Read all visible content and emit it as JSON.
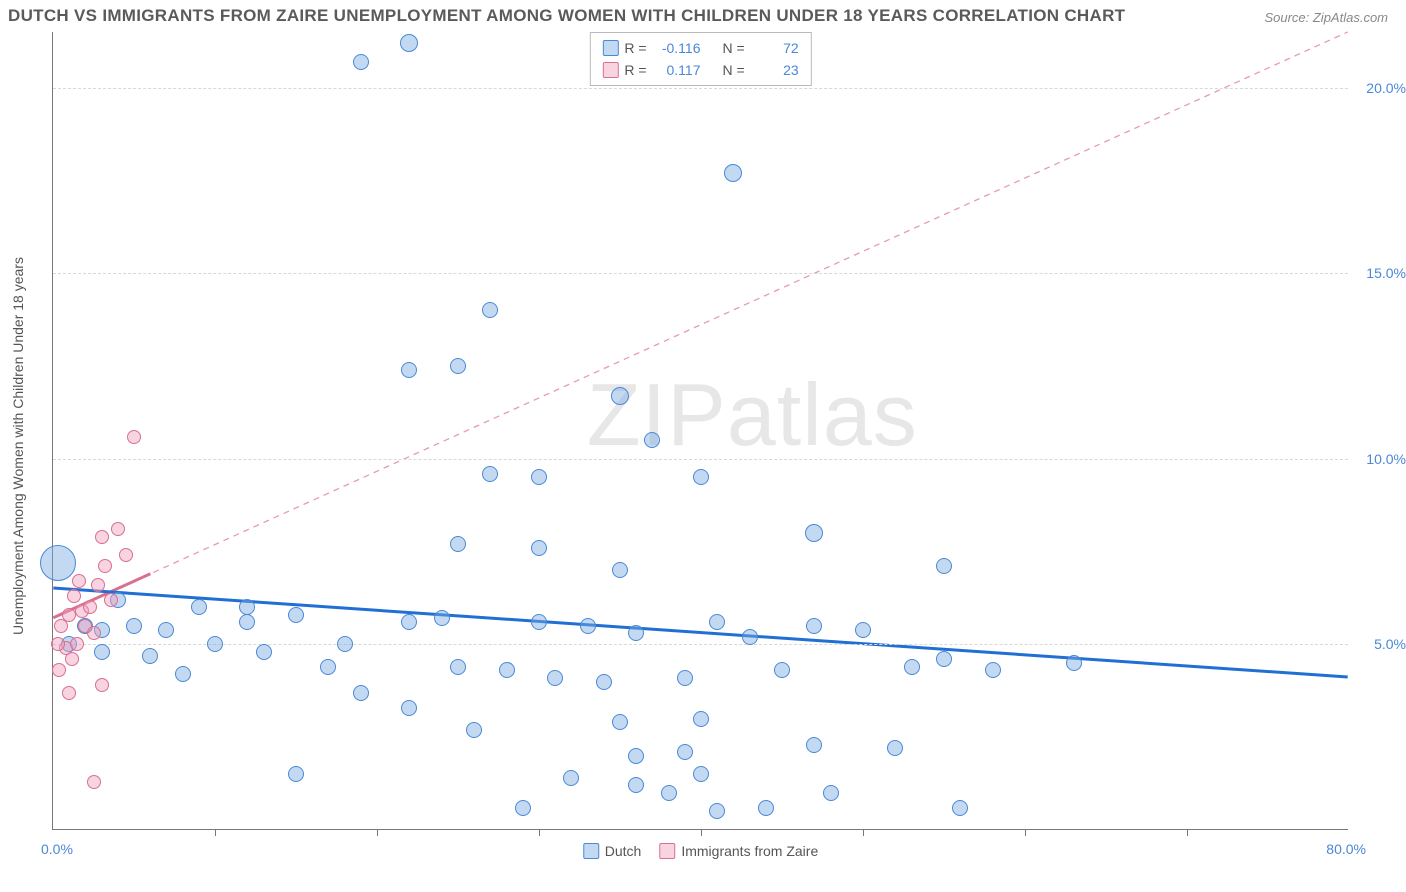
{
  "title": "DUTCH VS IMMIGRANTS FROM ZAIRE UNEMPLOYMENT AMONG WOMEN WITH CHILDREN UNDER 18 YEARS CORRELATION CHART",
  "source": "Source: ZipAtlas.com",
  "ylabel": "Unemployment Among Women with Children Under 18 years",
  "watermark_a": "ZIP",
  "watermark_b": "atlas",
  "chart": {
    "type": "scatter",
    "xlim": [
      0,
      80
    ],
    "ylim": [
      0,
      21.5
    ],
    "x_ticks": [
      10,
      20,
      30,
      40,
      50,
      60,
      70
    ],
    "y_gridlines": [
      5,
      10,
      15,
      20
    ],
    "y_tick_labels": [
      "5.0%",
      "10.0%",
      "15.0%",
      "20.0%"
    ],
    "xmin_label": "0.0%",
    "xmax_label": "80.0%",
    "background_color": "#ffffff",
    "grid_color": "#d8d8d8",
    "axis_color": "#777777",
    "label_color": "#4a88d8",
    "series": [
      {
        "key": "dutch",
        "label": "Dutch",
        "marker_fill": "rgba(120,170,225,0.45)",
        "marker_stroke": "#4a88d8",
        "marker_radius": 8,
        "trend": {
          "y_at_x0": 6.5,
          "y_at_xmax": 4.1,
          "color": "#1f6fd4",
          "width": 3,
          "dash": "none"
        },
        "stats": {
          "R": "-0.116",
          "N": "72"
        },
        "points": [
          [
            0.3,
            7.2,
            18
          ],
          [
            22,
            21.2,
            9
          ],
          [
            19,
            20.7,
            8
          ],
          [
            42,
            17.7,
            9
          ],
          [
            27,
            14.0,
            8
          ],
          [
            22,
            12.4,
            8
          ],
          [
            25,
            12.5,
            8
          ],
          [
            35,
            11.7,
            9
          ],
          [
            27,
            9.6,
            8
          ],
          [
            30,
            9.5,
            8
          ],
          [
            37,
            10.5,
            8
          ],
          [
            25,
            7.7,
            8
          ],
          [
            30,
            7.6,
            8
          ],
          [
            35,
            7.0,
            8
          ],
          [
            55,
            7.1,
            8
          ],
          [
            40,
            9.5,
            8
          ],
          [
            47,
            8.0,
            9
          ],
          [
            9,
            6.0,
            8
          ],
          [
            12,
            6.0,
            8
          ],
          [
            15,
            5.8,
            8
          ],
          [
            18,
            5.0,
            8
          ],
          [
            10,
            5.0,
            8
          ],
          [
            7,
            5.4,
            8
          ],
          [
            5,
            5.5,
            8
          ],
          [
            3,
            5.4,
            8
          ],
          [
            4,
            6.2,
            8
          ],
          [
            6,
            4.7,
            8
          ],
          [
            8,
            4.2,
            8
          ],
          [
            13,
            4.8,
            8
          ],
          [
            17,
            4.4,
            8
          ],
          [
            19,
            3.7,
            8
          ],
          [
            22,
            3.3,
            8
          ],
          [
            25,
            4.4,
            8
          ],
          [
            28,
            4.3,
            8
          ],
          [
            31,
            4.1,
            8
          ],
          [
            34,
            4.0,
            8
          ],
          [
            30,
            5.6,
            8
          ],
          [
            33,
            5.5,
            8
          ],
          [
            36,
            5.3,
            8
          ],
          [
            26,
            2.7,
            8
          ],
          [
            29,
            0.6,
            8
          ],
          [
            32,
            1.4,
            8
          ],
          [
            35,
            2.9,
            8
          ],
          [
            38,
            1.0,
            8
          ],
          [
            40,
            3.0,
            8
          ],
          [
            41,
            0.5,
            8
          ],
          [
            43,
            5.2,
            8
          ],
          [
            45,
            4.3,
            8
          ],
          [
            47,
            2.3,
            8
          ],
          [
            50,
            5.4,
            8
          ],
          [
            53,
            4.4,
            8
          ],
          [
            55,
            4.6,
            8
          ],
          [
            58,
            4.3,
            8
          ],
          [
            44,
            0.6,
            8
          ],
          [
            36,
            2.0,
            8
          ],
          [
            48,
            1.0,
            8
          ],
          [
            52,
            2.2,
            8
          ],
          [
            39,
            2.1,
            8
          ],
          [
            40,
            1.5,
            8
          ],
          [
            36,
            1.2,
            8
          ],
          [
            22,
            5.6,
            8
          ],
          [
            15,
            1.5,
            8
          ],
          [
            63,
            4.5,
            8
          ],
          [
            56,
            0.6,
            8
          ],
          [
            1,
            5.0,
            8
          ],
          [
            2,
            5.5,
            8
          ],
          [
            3,
            4.8,
            8
          ],
          [
            41,
            5.6,
            8
          ],
          [
            39,
            4.1,
            8
          ],
          [
            47,
            5.5,
            8
          ],
          [
            12,
            5.6,
            8
          ],
          [
            24,
            5.7,
            8
          ]
        ]
      },
      {
        "key": "zaire",
        "label": "Immigrants from Zaire",
        "marker_fill": "rgba(240,160,190,0.45)",
        "marker_stroke": "#d9708f",
        "marker_radius": 8,
        "trend": {
          "y_at_x0": 5.7,
          "y_at_xmax": 21.5,
          "color": "#e79ab5",
          "width": 1.3,
          "dash": "6 5"
        },
        "trend_solid_segment": {
          "x0": 0,
          "x1": 6,
          "color": "#d9708f",
          "width": 3
        },
        "stats": {
          "R": "0.117",
          "N": "23"
        },
        "points": [
          [
            5,
            10.6,
            7
          ],
          [
            0.5,
            5.5,
            7
          ],
          [
            1,
            5.8,
            7
          ],
          [
            1.3,
            6.3,
            7
          ],
          [
            1.8,
            5.9,
            7
          ],
          [
            2,
            5.5,
            7
          ],
          [
            2.3,
            6.0,
            7
          ],
          [
            2.5,
            5.3,
            7
          ],
          [
            0.8,
            4.9,
            7
          ],
          [
            1.2,
            4.6,
            7
          ],
          [
            0.4,
            4.3,
            7
          ],
          [
            0.3,
            5.0,
            7
          ],
          [
            1.5,
            5.0,
            7
          ],
          [
            3,
            7.9,
            7
          ],
          [
            4,
            8.1,
            7
          ],
          [
            4.5,
            7.4,
            7
          ],
          [
            3.2,
            7.1,
            7
          ],
          [
            2.8,
            6.6,
            7
          ],
          [
            3.6,
            6.2,
            7
          ],
          [
            1.6,
            6.7,
            7
          ],
          [
            3,
            3.9,
            7
          ],
          [
            1,
            3.7,
            7
          ],
          [
            2.5,
            1.3,
            7
          ]
        ]
      }
    ]
  },
  "stats_box": {
    "header_R": "R =",
    "header_N": "N ="
  },
  "legend": {
    "dutch": "Dutch",
    "zaire": "Immigrants from Zaire"
  }
}
